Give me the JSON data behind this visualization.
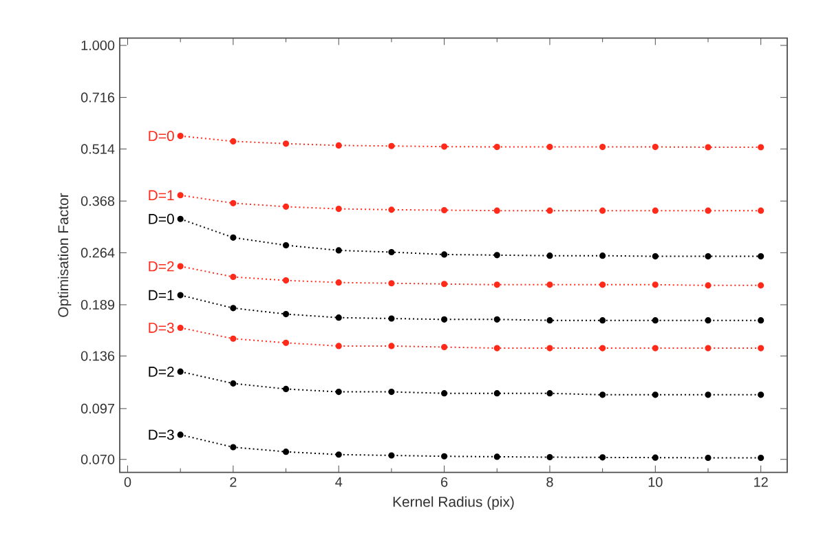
{
  "chart_data": {
    "type": "line",
    "xlabel": "Kernel Radius (pix)",
    "ylabel": "Optimisation Factor",
    "log": "y",
    "marker": "circle",
    "line_style": "dotted",
    "grid": false,
    "legend": false,
    "xlim": [
      -0.15,
      12.5
    ],
    "xticks": [
      0,
      2,
      4,
      6,
      8,
      10,
      12
    ],
    "ylim": [
      0.0644,
      1.048
    ],
    "yticks": [
      {
        "value": 0.07,
        "label": "0.070"
      },
      0.097,
      0.136,
      0.189,
      0.264,
      0.368,
      0.514,
      0.716,
      {
        "value": 1.0,
        "label": "1.000"
      }
    ],
    "x": [
      1,
      2,
      3,
      4,
      5,
      6,
      7,
      8,
      9,
      10,
      11,
      12
    ],
    "series": [
      {
        "name": "D=0",
        "color": "#ff2a1a",
        "values": [
          0.559,
          0.54,
          0.532,
          0.526,
          0.524,
          0.522,
          0.521,
          0.521,
          0.521,
          0.521,
          0.52,
          0.52
        ]
      },
      {
        "name": "D=1",
        "color": "#ff2a1a",
        "values": [
          0.382,
          0.363,
          0.355,
          0.35,
          0.348,
          0.347,
          0.346,
          0.346,
          0.346,
          0.346,
          0.346,
          0.346
        ]
      },
      {
        "name": "D=0",
        "color": "#000000",
        "values": [
          0.328,
          0.291,
          0.277,
          0.268,
          0.265,
          0.261,
          0.26,
          0.259,
          0.259,
          0.258,
          0.258,
          0.258
        ]
      },
      {
        "name": "D=2",
        "color": "#ff2a1a",
        "values": [
          0.242,
          0.226,
          0.221,
          0.218,
          0.217,
          0.216,
          0.215,
          0.215,
          0.215,
          0.215,
          0.214,
          0.214
        ]
      },
      {
        "name": "D=1",
        "color": "#000000",
        "values": [
          0.201,
          0.185,
          0.178,
          0.174,
          0.173,
          0.172,
          0.172,
          0.171,
          0.171,
          0.171,
          0.171,
          0.171
        ]
      },
      {
        "name": "D=3",
        "color": "#ff2a1a",
        "values": [
          0.163,
          0.152,
          0.148,
          0.145,
          0.145,
          0.144,
          0.143,
          0.143,
          0.143,
          0.143,
          0.143,
          0.143
        ]
      },
      {
        "name": "D=2",
        "color": "#000000",
        "values": [
          0.123,
          0.114,
          0.11,
          0.108,
          0.108,
          0.107,
          0.107,
          0.107,
          0.106,
          0.106,
          0.106,
          0.106
        ]
      },
      {
        "name": "D=3",
        "color": "#000000",
        "values": [
          0.082,
          0.0757,
          0.0735,
          0.0722,
          0.0718,
          0.0714,
          0.0712,
          0.071,
          0.0709,
          0.0708,
          0.0707,
          0.0707
        ]
      }
    ]
  }
}
